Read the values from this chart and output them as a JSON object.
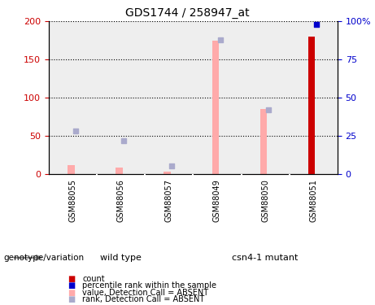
{
  "title": "GDS1744 / 258947_at",
  "categories": [
    "GSM88055",
    "GSM88056",
    "GSM88057",
    "GSM88049",
    "GSM88050",
    "GSM88051"
  ],
  "group_labels": [
    "wild type",
    "csn4-1 mutant"
  ],
  "value_bars": [
    12,
    8,
    3,
    175,
    85,
    0
  ],
  "rank_dots": [
    28,
    22,
    5,
    88,
    42,
    0
  ],
  "count_bar_idx": 5,
  "count_bar_value": 180,
  "count_bar_color": "#cc0000",
  "percentile_dot_idx": 5,
  "percentile_dot_value": 98,
  "percentile_dot_color": "#0000cc",
  "value_color": "#ffaaaa",
  "rank_color": "#aaaacc",
  "ylim_left": [
    0,
    200
  ],
  "ylim_right": [
    0,
    100
  ],
  "yticks_left": [
    0,
    50,
    100,
    150,
    200
  ],
  "ytick_labels_left": [
    "0",
    "50",
    "100",
    "150",
    "200"
  ],
  "yticks_right": [
    0,
    25,
    50,
    75,
    100
  ],
  "ytick_labels_right": [
    "0",
    "25",
    "50",
    "75",
    "100%"
  ],
  "left_axis_color": "#cc0000",
  "right_axis_color": "#0000cc",
  "legend_items": [
    {
      "label": "count",
      "color": "#cc0000"
    },
    {
      "label": "percentile rank within the sample",
      "color": "#0000cc"
    },
    {
      "label": "value, Detection Call = ABSENT",
      "color": "#ffaaaa"
    },
    {
      "label": "rank, Detection Call = ABSENT",
      "color": "#aaaacc"
    }
  ],
  "genotype_label": "genotype/variation",
  "grid_color": "#000000",
  "bar_width": 0.12,
  "gray_col_color": "#d0d0d0",
  "green_color": "#55dd55",
  "col_border_color": "#aaaaaa"
}
